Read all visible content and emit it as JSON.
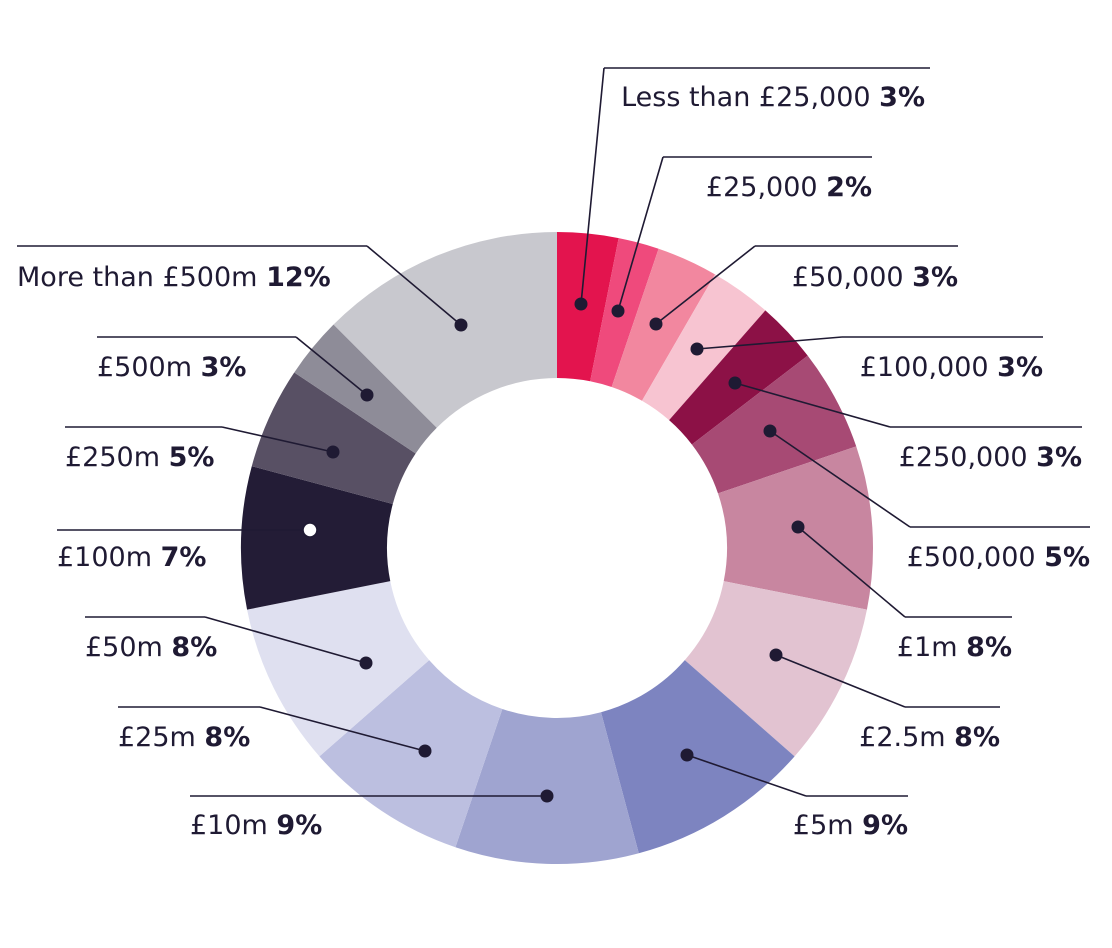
{
  "chart_data": {
    "type": "pie",
    "variant": "donut",
    "title": "",
    "slices": [
      {
        "label": "Less than £25,000",
        "value": 3,
        "value_label": "3%",
        "color": "#e3144e"
      },
      {
        "label": "£25,000",
        "value": 2,
        "value_label": "2%",
        "color": "#ef4a7c"
      },
      {
        "label": "£50,000",
        "value": 3,
        "value_label": "3%",
        "color": "#f2879f"
      },
      {
        "label": "£100,000",
        "value": 3,
        "value_label": "3%",
        "color": "#f7c4d1"
      },
      {
        "label": "£250,000",
        "value": 3,
        "value_label": "3%",
        "color": "#8c1146"
      },
      {
        "label": "£500,000",
        "value": 5,
        "value_label": "5%",
        "color": "#a74a74"
      },
      {
        "label": "£1m",
        "value": 8,
        "value_label": "8%",
        "color": "#c886a0"
      },
      {
        "label": "£2.5m",
        "value": 8,
        "value_label": "8%",
        "color": "#e2c3d1"
      },
      {
        "label": "£5m",
        "value": 9,
        "value_label": "9%",
        "color": "#7d84c0"
      },
      {
        "label": "£10m",
        "value": 9,
        "value_label": "9%",
        "color": "#9fa4d0"
      },
      {
        "label": "£25m",
        "value": 8,
        "value_label": "8%",
        "color": "#bcbfe0"
      },
      {
        "label": "£50m",
        "value": 8,
        "value_label": "8%",
        "color": "#dfe0f0"
      },
      {
        "label": "£100m",
        "value": 7,
        "value_label": "7%",
        "color": "#231c36"
      },
      {
        "label": "£250m",
        "value": 5,
        "value_label": "5%",
        "color": "#585064"
      },
      {
        "label": "£500m",
        "value": 3,
        "value_label": "3%",
        "color": "#8e8c98"
      },
      {
        "label": "More than £500m",
        "value": 12,
        "value_label": "12%",
        "color": "#c8c8ce"
      }
    ],
    "label_color": "#1f1a33",
    "legend": "none"
  }
}
